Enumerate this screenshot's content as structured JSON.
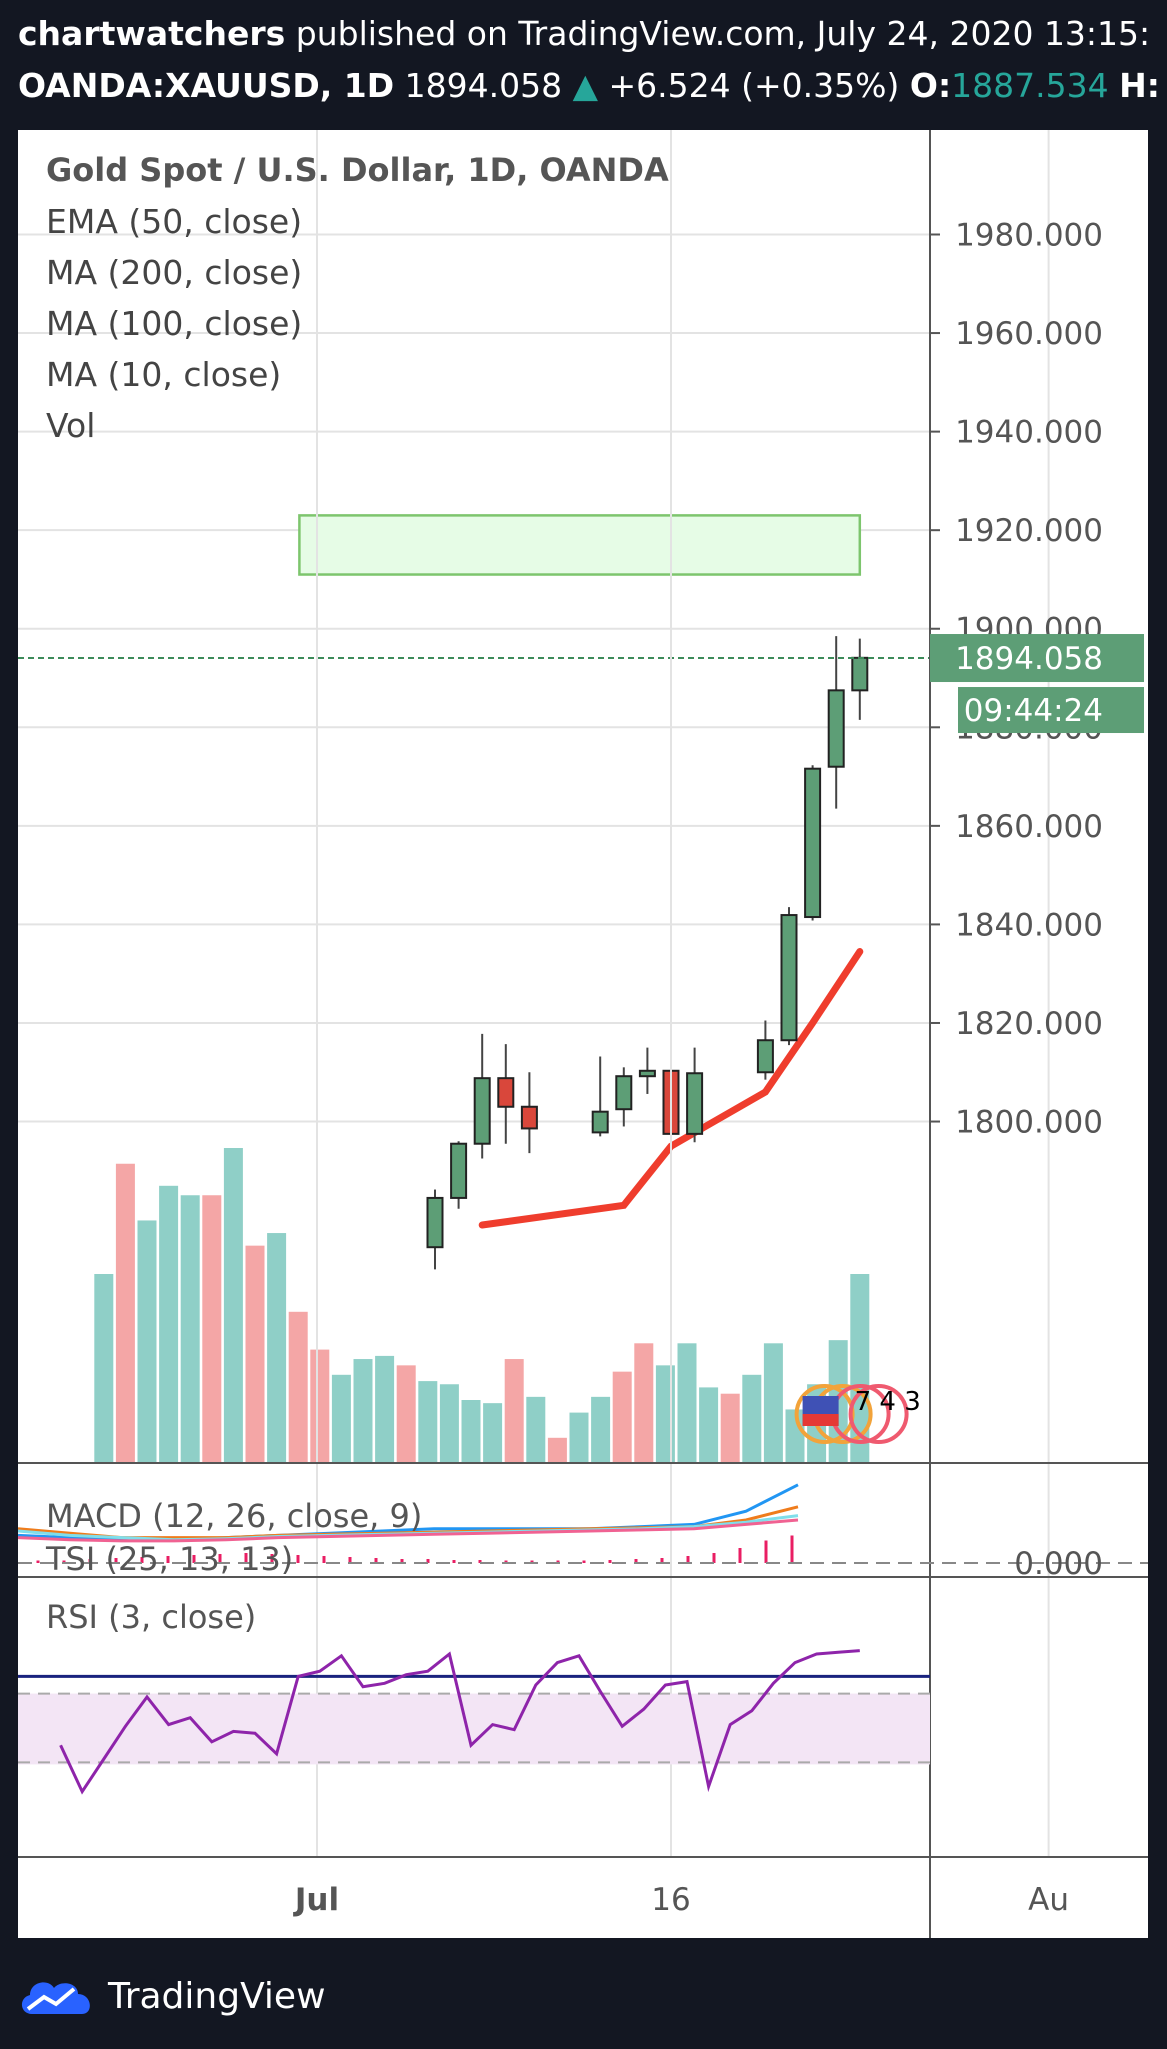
{
  "header": {
    "author": "chartwatchers",
    "published_text": "published on TradingView.com, July 24, 2020 13:15:",
    "symbol": "OANDA:XAUUSD, 1D",
    "price": "1894.058",
    "change_arrow": "▲",
    "change": "+6.524 (+0.35%)",
    "open_label": "O:",
    "open_value": "1887.534",
    "high_label": "H:"
  },
  "legend": {
    "title": "Gold Spot / U.S. Dollar, 1D, OANDA",
    "lines": [
      "EMA (50, close)",
      "MA (200, close)",
      "MA (100, close)",
      "MA (10, close)",
      "Vol"
    ]
  },
  "last_price_tag": "1894.058",
  "countdown_tag": "09:44:24",
  "event_counts": "7  4 3",
  "event_flag_icon": "us-flag-icon",
  "colors": {
    "up": "#26a69a",
    "candle_up": "#5d9e76",
    "candle_down": "#d9473b",
    "vol_up": "#8fcfc7",
    "vol_down": "#f4a6a6",
    "ma": "#ef3d2d",
    "macd": "#2196f3",
    "signal": "#ef7c1c",
    "rsi": "#8e24aa",
    "zone": "#e6fce6",
    "zone_border": "#7dc56d"
  },
  "footer": {
    "brand": "TradingView",
    "logo_icon": "tradingview-cloud-icon"
  },
  "chart_data": [
    {
      "type": "candlestick",
      "title": "Gold Spot / U.S. Dollar, 1D, OANDA",
      "y_ticks": [
        1800,
        1820,
        1840,
        1860,
        1880,
        1900,
        1920,
        1940,
        1960,
        1980
      ],
      "y_tick_labels": [
        "1800.000",
        "1820.000",
        "1840.000",
        "1860.000",
        "1880.000",
        "1900.000",
        "1920.000",
        "1940.000",
        "1960.000",
        "1980.000"
      ],
      "ylim": [
        1790,
        2000
      ],
      "x_tick_labels": [
        "16",
        "Jul",
        "16",
        "Au"
      ],
      "candles": [
        {
          "date": "2020-07-06",
          "open": 1774.5,
          "high": 1786.2,
          "low": 1770.0,
          "close": 1784.5
        },
        {
          "date": "2020-07-07",
          "open": 1784.5,
          "high": 1796.0,
          "low": 1782.3,
          "close": 1795.5
        },
        {
          "date": "2020-07-08",
          "open": 1795.5,
          "high": 1817.8,
          "low": 1792.5,
          "close": 1808.8
        },
        {
          "date": "2020-07-09",
          "open": 1808.8,
          "high": 1815.7,
          "low": 1795.5,
          "close": 1803.0
        },
        {
          "date": "2020-07-10",
          "open": 1803.0,
          "high": 1810.0,
          "low": 1793.6,
          "close": 1798.6
        },
        {
          "date": "2020-07-13",
          "open": 1797.8,
          "high": 1813.2,
          "low": 1797.0,
          "close": 1802.0
        },
        {
          "date": "2020-07-14",
          "open": 1802.5,
          "high": 1811.0,
          "low": 1799.0,
          "close": 1809.2
        },
        {
          "date": "2020-07-15",
          "open": 1809.2,
          "high": 1815.0,
          "low": 1805.6,
          "close": 1810.3
        },
        {
          "date": "2020-07-16",
          "open": 1810.3,
          "high": 1813.5,
          "low": 1795.0,
          "close": 1797.5
        },
        {
          "date": "2020-07-17",
          "open": 1797.5,
          "high": 1815.0,
          "low": 1795.8,
          "close": 1809.8
        },
        {
          "date": "2020-07-20",
          "open": 1810.0,
          "high": 1820.5,
          "low": 1808.5,
          "close": 1816.5
        },
        {
          "date": "2020-07-21",
          "open": 1816.5,
          "high": 1843.5,
          "low": 1815.5,
          "close": 1841.9
        },
        {
          "date": "2020-07-22",
          "open": 1841.5,
          "high": 1872.3,
          "low": 1840.8,
          "close": 1871.6
        },
        {
          "date": "2020-07-23",
          "open": 1872.0,
          "high": 1898.5,
          "low": 1863.5,
          "close": 1887.5
        },
        {
          "date": "2020-07-24",
          "open": 1887.5,
          "high": 1898.0,
          "low": 1881.5,
          "close": 1894.1
        }
      ],
      "moving_average_visible": [
        {
          "date": "2020-07-08",
          "value": 1779
        },
        {
          "date": "2020-07-14",
          "value": 1783
        },
        {
          "date": "2020-07-16",
          "value": 1795
        },
        {
          "date": "2020-07-20",
          "value": 1806
        },
        {
          "date": "2020-07-22",
          "value": 1820
        },
        {
          "date": "2020-07-24",
          "value": 1834.5
        }
      ],
      "target_zone": {
        "from": "2020-06-30",
        "to": "2020-07-24",
        "low": 1911,
        "high": 1923
      },
      "last_price": 1894.058
    },
    {
      "type": "bar",
      "title": "Vol",
      "relative_heights": [
        0.6,
        0.95,
        0.77,
        0.88,
        0.85,
        0.85,
        1.0,
        0.69,
        0.73,
        0.48,
        0.36,
        0.28,
        0.33,
        0.34,
        0.31,
        0.26,
        0.25,
        0.2,
        0.19,
        0.33,
        0.21,
        0.08,
        0.16,
        0.21,
        0.29,
        0.38,
        0.31,
        0.38,
        0.24,
        0.22,
        0.28,
        0.38,
        0.17,
        0.25,
        0.39,
        0.6
      ],
      "directions": [
        "up",
        "down",
        "up",
        "up",
        "up",
        "down",
        "up",
        "down",
        "up",
        "down",
        "down",
        "up",
        "up",
        "up",
        "down",
        "up",
        "up",
        "up",
        "up",
        "down",
        "up",
        "down",
        "up",
        "up",
        "down",
        "down",
        "up",
        "up",
        "up",
        "down",
        "up",
        "up",
        "up",
        "up",
        "up",
        "up"
      ]
    },
    {
      "type": "line",
      "title": "MACD (12, 26, close, 9)",
      "secondary_label": "TSI (25, 13, 13)",
      "y_tick_labels": [
        "0.000"
      ],
      "series": [
        {
          "values": [
            0.3,
            0.2,
            0.1,
            0.1,
            0.2,
            0.3,
            0.4,
            0.5,
            0.6,
            0.6,
            0.6,
            0.6,
            0.7,
            0.8,
            1.4,
            2.6
          ]
        },
        {
          "values": [
            0.6,
            0.4,
            0.2,
            0.2,
            0.2,
            0.3,
            0.35,
            0.4,
            0.45,
            0.5,
            0.55,
            0.6,
            0.65,
            0.7,
            1.0,
            1.6
          ]
        },
        {
          "values": [
            0.5,
            0.3,
            0.2,
            0.1,
            0.15,
            0.25,
            0.3,
            0.35,
            0.4,
            0.45,
            0.5,
            0.55,
            0.6,
            0.7,
            0.9,
            1.2
          ]
        },
        {
          "values": [
            0.2,
            0.1,
            0.05,
            0.05,
            0.1,
            0.2,
            0.25,
            0.3,
            0.35,
            0.4,
            0.45,
            0.5,
            0.55,
            0.6,
            0.8,
            1.0
          ]
        }
      ],
      "histogram": [
        0.05,
        0.05,
        0.08,
        0.1,
        0.12,
        0.14,
        0.16,
        0.18,
        0.2,
        0.18,
        0.16,
        0.14,
        0.12,
        0.1,
        0.08,
        0.08,
        0.06,
        0.06,
        0.05,
        0.05,
        0.05,
        0.05,
        0.06,
        0.08,
        0.1,
        0.14,
        0.2,
        0.3,
        0.45,
        0.55
      ]
    },
    {
      "type": "line",
      "title": "RSI (3, close)",
      "ylim": [
        0,
        100
      ],
      "levels": [
        80,
        70,
        30
      ],
      "values": [
        40,
        13,
        32,
        51,
        68,
        52,
        56,
        42,
        48,
        47,
        35,
        80,
        83,
        92,
        74,
        76,
        81,
        83,
        93,
        40,
        52,
        49,
        75,
        88,
        92,
        71,
        51,
        61,
        75,
        77,
        16,
        52,
        60,
        76,
        88,
        93,
        94,
        95
      ]
    }
  ]
}
